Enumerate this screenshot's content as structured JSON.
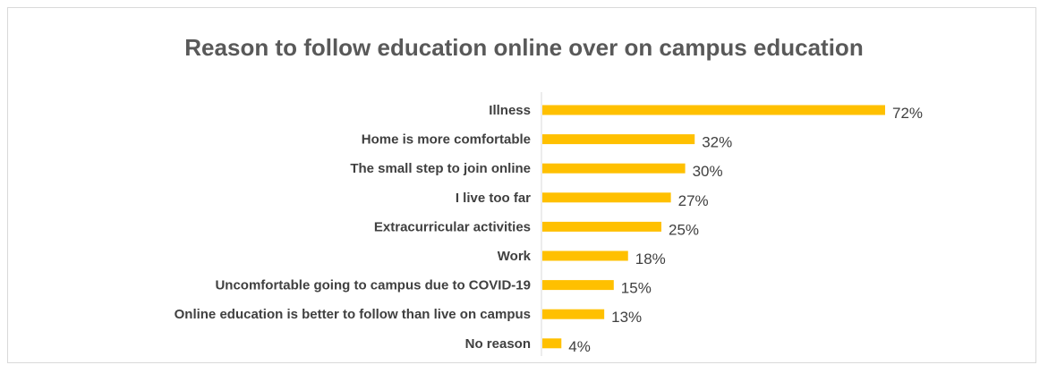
{
  "chart_data": {
    "type": "bar",
    "orientation": "horizontal",
    "title": "Reason to follow education online over on campus education",
    "categories": [
      "Illness",
      "Home is more comfortable",
      "The small step to join online",
      "I live too far",
      "Extracurricular activities",
      "Work",
      "Uncomfortable going to campus due to COVID-19",
      "Online education is better to follow than live on campus",
      "No reason"
    ],
    "values": [
      72,
      32,
      30,
      27,
      25,
      18,
      15,
      13,
      4
    ],
    "value_labels": [
      "72%",
      "32%",
      "30%",
      "27%",
      "25%",
      "18%",
      "15%",
      "13%",
      "4%"
    ],
    "xlim": [
      0,
      80
    ],
    "bar_color": "#FFC000",
    "axis_color": "#d9d9d9",
    "grid": false,
    "legend": "none"
  }
}
